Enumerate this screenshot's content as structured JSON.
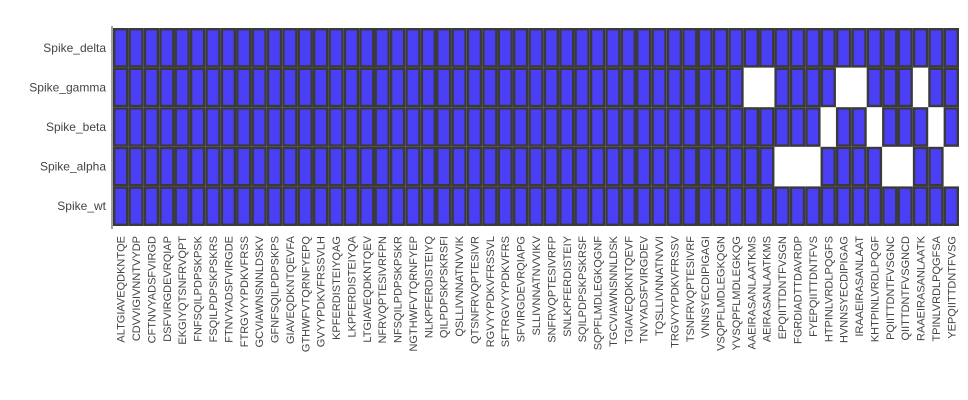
{
  "chart_data": {
    "type": "heatmap",
    "title": "",
    "xlabel": "",
    "ylabel": "",
    "grid": false,
    "legend": "none",
    "colors": {
      "present": "#4b3ff5",
      "absent": "#ffffff",
      "border": "#3a3a3a"
    },
    "y_categories": [
      "Spike_wt",
      "Spike_alpha",
      "Spike_beta",
      "Spike_gamma",
      "Spike_delta"
    ],
    "x_categories": [
      "ALTGIAVEQDKNTQE",
      "CDVVIGIVNNTVYDP",
      "CFTNVYADSFVIRGD",
      "DSFVIRGDEVRQIAP",
      "EKGIYQTSNFRVQPT",
      "FNFSQILPDPSKPSK",
      "FSQILPDPSKPSKRS",
      "FTNVYADSFVIRGDE",
      "FTRGVYYPDKVFRSS",
      "GCVIAWNSNNLDSKV",
      "GFNFSQILPDPSKPS",
      "GIAVEQDKNTQEVFA",
      "GTHWFVTQRNFYEPQ",
      "GVYYPDKVFRSSVLH",
      "KPFERDISTEIYQAG",
      "LKPFERDISTEIYQA",
      "LTGIAVEQDKNTQEV",
      "NFRVQPTESIVRFPN",
      "NFSQILPDPSKPSKR",
      "NGTHWFVTQRNFYEP",
      "NLKPFERDISTEIYQ",
      "QILPDPSKPSKRSFI",
      "QSLLIVNNATNVVIK",
      "QTSNFRVQPTESIVR",
      "RGVYYPDKVFRSSVL",
      "SFTRGVYYPDKVFRS",
      "SFVIRGDEVRQIAPG",
      "SLLIVNNATNVVIKV",
      "SNFRVQPTESIVRFP",
      "SNLKPFERDISTEIY",
      "SQILPDPSKPSKRSF",
      "SQPFLMDLEGKQGNF",
      "TGCVIAWNSNNLDSK",
      "TGIAVEQDKNTQEVF",
      "TNVYADSFVIRGDEV",
      "TQSLLIVNNATNVVI",
      "TRGVYYPDKVFRSSV",
      "TSNFRVQPTESIVRF",
      "VNNSYECDIPIGAGI",
      "VSQPFLMDLEGKQGN",
      "YVSQPFLMDLEGKQG",
      "AAEIRASANLAATKMS",
      "AEIRASANLAATKMS",
      "EPQIITTDNTFVSGN",
      "FGRDIADTTDAVRDP",
      "FYEPQIITTDNTFVS",
      "HTPINLVRDLPQGFS",
      "HVNNSYECDIPIGAG",
      "IRAAEIRASANLAAT",
      "KHTPINLVRDLPQGF",
      "PQIITTDNTFVSGNC",
      "QIITTDNTFVSGNCD",
      "RAAEIRASANLAATK",
      "TPINLVRDLPQGFSA",
      "YEPQIITTDNTFVSG"
    ],
    "values": [
      [
        1,
        1,
        1,
        1,
        1,
        1,
        1,
        1,
        1,
        1,
        1,
        1,
        1,
        1,
        1,
        1,
        1,
        1,
        1,
        1,
        1,
        1,
        1,
        1,
        1,
        1,
        1,
        1,
        1,
        1,
        1,
        1,
        1,
        1,
        1,
        1,
        1,
        1,
        1,
        1,
        1,
        1,
        1,
        1,
        1,
        1,
        1,
        1,
        1,
        1,
        1,
        1,
        1,
        1,
        1
      ],
      [
        1,
        1,
        1,
        1,
        1,
        1,
        1,
        1,
        1,
        1,
        1,
        1,
        1,
        1,
        1,
        1,
        1,
        1,
        1,
        1,
        1,
        1,
        1,
        1,
        1,
        1,
        1,
        1,
        1,
        1,
        1,
        1,
        1,
        1,
        1,
        1,
        1,
        1,
        1,
        1,
        1,
        1,
        1,
        0,
        0,
        0,
        1,
        1,
        1,
        1,
        0,
        0,
        1,
        1,
        0
      ],
      [
        1,
        1,
        1,
        1,
        1,
        1,
        1,
        1,
        1,
        1,
        1,
        1,
        1,
        1,
        1,
        1,
        1,
        1,
        1,
        1,
        1,
        1,
        1,
        1,
        1,
        1,
        1,
        1,
        1,
        1,
        1,
        1,
        1,
        1,
        1,
        1,
        1,
        1,
        1,
        1,
        1,
        1,
        1,
        1,
        1,
        1,
        0,
        1,
        1,
        0,
        1,
        1,
        1,
        0,
        1
      ],
      [
        1,
        1,
        1,
        1,
        1,
        1,
        1,
        1,
        1,
        1,
        1,
        1,
        1,
        1,
        1,
        1,
        1,
        1,
        1,
        1,
        1,
        1,
        1,
        1,
        1,
        1,
        1,
        1,
        1,
        1,
        1,
        1,
        1,
        1,
        1,
        1,
        1,
        1,
        1,
        1,
        1,
        0,
        0,
        1,
        1,
        1,
        1,
        0,
        0,
        1,
        1,
        1,
        0,
        1,
        1
      ],
      [
        1,
        1,
        1,
        1,
        1,
        1,
        1,
        1,
        1,
        1,
        1,
        1,
        1,
        1,
        1,
        1,
        1,
        1,
        1,
        1,
        1,
        1,
        1,
        1,
        1,
        1,
        1,
        1,
        1,
        1,
        1,
        1,
        1,
        1,
        1,
        1,
        1,
        1,
        1,
        1,
        1,
        1,
        1,
        1,
        1,
        1,
        1,
        1,
        1,
        1,
        1,
        1,
        1,
        1,
        1
      ]
    ]
  }
}
